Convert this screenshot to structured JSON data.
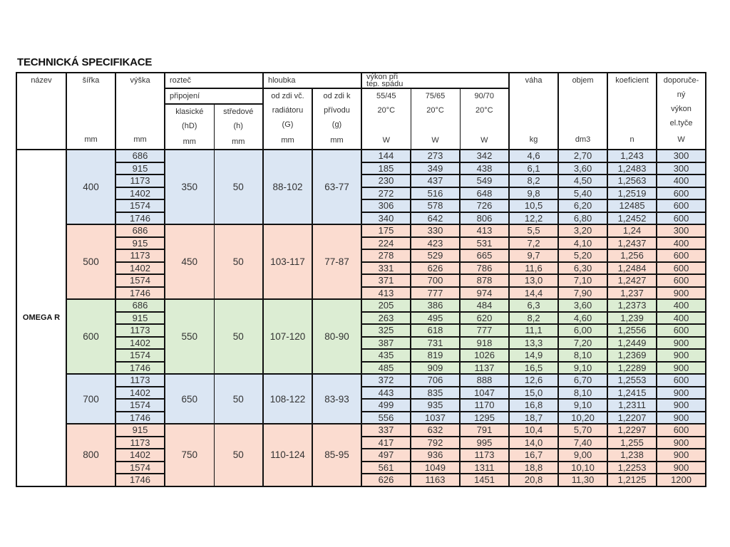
{
  "title": "TECHNICKÁ SPECIFIKACE",
  "colors": {
    "blue": "#dbe6f3",
    "peach": "#fbdcd0",
    "green": "#dcedd3"
  },
  "headers": {
    "nazev": "název",
    "sirka": "šířka",
    "sirka_unit": "mm",
    "vyska": "výška",
    "vyska_unit": "mm",
    "roztec": "rozteč",
    "pripojeni": "připojení",
    "klasicke": "klasické",
    "klasicke_sym": "(hD)",
    "klasicke_unit": "mm",
    "stredove": "středové",
    "stredove_sym": "(h)",
    "stredove_unit": "mm",
    "hloubka": "hloubka",
    "odzdi_rad_1": "od zdi  vč.",
    "odzdi_rad_2": "radiátoru",
    "odzdi_rad_sym": "(G)",
    "odzdi_rad_unit": "mm",
    "odzdi_pri_1": "od zdi  k",
    "odzdi_pri_2": "přívodu",
    "odzdi_pri_sym": "(g)",
    "odzdi_pri_unit": "mm",
    "vykon_1": "výkon při",
    "vykon_2": "tep.  spádu",
    "t1": "55/45",
    "t2": "75/65",
    "t3": "90/70",
    "temp": "20°C",
    "w_unit": "W",
    "vaha": "váha",
    "vaha_unit": "kg",
    "objem": "objem",
    "objem_unit": "dm3",
    "koeficient": "koeficient",
    "koeficient_unit": "n",
    "doporuceny_1": "doporuče-",
    "doporuceny_2": "ný",
    "doporuceny_3": "výkon",
    "doporuceny_4": "el.tyče",
    "doporuceny_unit": "W"
  },
  "product_name": "OMEGA R",
  "groups": [
    {
      "color": "blue",
      "sirka": "400",
      "klasicke": "350",
      "stredove": "50",
      "odzdi_rad": "88-102",
      "odzdi_pri": "63-77",
      "rows": [
        [
          "686",
          "144",
          "273",
          "342",
          "4,6",
          "2,70",
          "1,243",
          "300"
        ],
        [
          "915",
          "185",
          "349",
          "438",
          "6,1",
          "3,60",
          "1,2483",
          "300"
        ],
        [
          "1173",
          "230",
          "437",
          "549",
          "8,2",
          "4,50",
          "1,2563",
          "400"
        ],
        [
          "1402",
          "272",
          "516",
          "648",
          "9,8",
          "5,40",
          "1,2519",
          "600"
        ],
        [
          "1574",
          "306",
          "578",
          "726",
          "10,5",
          "6,20",
          "12485",
          "600"
        ],
        [
          "1746",
          "340",
          "642",
          "806",
          "12,2",
          "6,80",
          "1,2452",
          "600"
        ]
      ]
    },
    {
      "color": "peach",
      "sirka": "500",
      "klasicke": "450",
      "stredove": "50",
      "odzdi_rad": "103-117",
      "odzdi_pri": "77-87",
      "rows": [
        [
          "686",
          "175",
          "330",
          "413",
          "5,5",
          "3,20",
          "1,24",
          "300"
        ],
        [
          "915",
          "224",
          "423",
          "531",
          "7,2",
          "4,10",
          "1,2437",
          "400"
        ],
        [
          "1173",
          "278",
          "529",
          "665",
          "9,7",
          "5,20",
          "1,256",
          "600"
        ],
        [
          "1402",
          "331",
          "626",
          "786",
          "11,6",
          "6,30",
          "1,2484",
          "600"
        ],
        [
          "1574",
          "371",
          "700",
          "878",
          "13,0",
          "7,10",
          "1,2427",
          "600"
        ],
        [
          "1746",
          "413",
          "777",
          "974",
          "14,4",
          "7,90",
          "1,237",
          "900"
        ]
      ]
    },
    {
      "color": "green",
      "sirka": "600",
      "klasicke": "550",
      "stredove": "50",
      "odzdi_rad": "107-120",
      "odzdi_pri": "80-90",
      "rows": [
        [
          "686",
          "205",
          "386",
          "484",
          "6,3",
          "3,60",
          "1,2373",
          "400"
        ],
        [
          "915",
          "263",
          "495",
          "620",
          "8,2",
          "4,60",
          "1,239",
          "400"
        ],
        [
          "1173",
          "325",
          "618",
          "777",
          "11,1",
          "6,00",
          "1,2556",
          "600"
        ],
        [
          "1402",
          "387",
          "731",
          "918",
          "13,3",
          "7,20",
          "1,2449",
          "900"
        ],
        [
          "1574",
          "435",
          "819",
          "1026",
          "14,9",
          "8,10",
          "1,2369",
          "900"
        ],
        [
          "1746",
          "485",
          "909",
          "1137",
          "16,5",
          "9,10",
          "1,2289",
          "900"
        ]
      ]
    },
    {
      "color": "blue",
      "sirka": "700",
      "klasicke": "650",
      "stredove": "50",
      "odzdi_rad": "108-122",
      "odzdi_pri": "83-93",
      "rows": [
        [
          "1173",
          "372",
          "706",
          "888",
          "12,6",
          "6,70",
          "1,2553",
          "600"
        ],
        [
          "1402",
          "443",
          "835",
          "1047",
          "15,0",
          "8,10",
          "1,2415",
          "900"
        ],
        [
          "1574",
          "499",
          "935",
          "1170",
          "16,8",
          "9,10",
          "1,2311",
          "900"
        ],
        [
          "1746",
          "556",
          "1037",
          "1295",
          "18,7",
          "10,20",
          "1,2207",
          "900"
        ]
      ]
    },
    {
      "color": "peach",
      "sirka": "800",
      "klasicke": "750",
      "stredove": "50",
      "odzdi_rad": "110-124",
      "odzdi_pri": "85-95",
      "rows": [
        [
          "915",
          "337",
          "632",
          "791",
          "10,4",
          "5,70",
          "1,2297",
          "600"
        ],
        [
          "1173",
          "417",
          "792",
          "995",
          "14,0",
          "7,40",
          "1,255",
          "900"
        ],
        [
          "1402",
          "497",
          "936",
          "1173",
          "16,7",
          "9,00",
          "1,238",
          "900"
        ],
        [
          "1574",
          "561",
          "1049",
          "1311",
          "18,8",
          "10,10",
          "1,2253",
          "900"
        ],
        [
          "1746",
          "626",
          "1163",
          "1451",
          "20,8",
          "11,30",
          "1,2125",
          "1200"
        ]
      ]
    }
  ]
}
